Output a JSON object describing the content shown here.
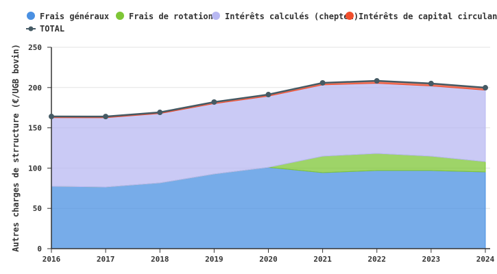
{
  "chart_data": {
    "type": "area",
    "stacked": true,
    "xlabel": "",
    "ylabel": "Autres charges de strructure (€/UGB bovin)",
    "ylim": [
      0,
      250
    ],
    "yticks": [
      0,
      50,
      100,
      150,
      200,
      250
    ],
    "grid": true,
    "legend_position": "top",
    "categories": [
      "2016",
      "2017",
      "2018",
      "2019",
      "2020",
      "2021",
      "2022",
      "2023",
      "2024"
    ],
    "series": [
      {
        "name": "Frais généraux",
        "color": "#4a90e2",
        "values": [
          77.4,
          76.5,
          81.6,
          92.7,
          101,
          94.4,
          97,
          97,
          95.2
        ]
      },
      {
        "name": "Frais de rotation",
        "color": "#7ec636",
        "values": [
          0,
          0,
          0,
          0,
          0,
          20.4,
          21.2,
          17.8,
          12.8
        ]
      },
      {
        "name": "Intérêts calculés (cheptel)",
        "color": "#b8b8f2",
        "values": [
          85.2,
          86,
          86.1,
          87.3,
          88.3,
          88.5,
          87.1,
          87.2,
          88.8
        ]
      },
      {
        "name": "Intérêts de capital circulant",
        "color": "#f04e2c",
        "values": [
          1.5,
          1.5,
          1.5,
          2,
          2,
          2.5,
          3,
          3,
          3
        ]
      }
    ],
    "total": {
      "name": "TOTAL",
      "color": "#455a64",
      "values": [
        164.1,
        164,
        169.2,
        182,
        191.3,
        205.8,
        208.3,
        205,
        199.8
      ]
    }
  }
}
